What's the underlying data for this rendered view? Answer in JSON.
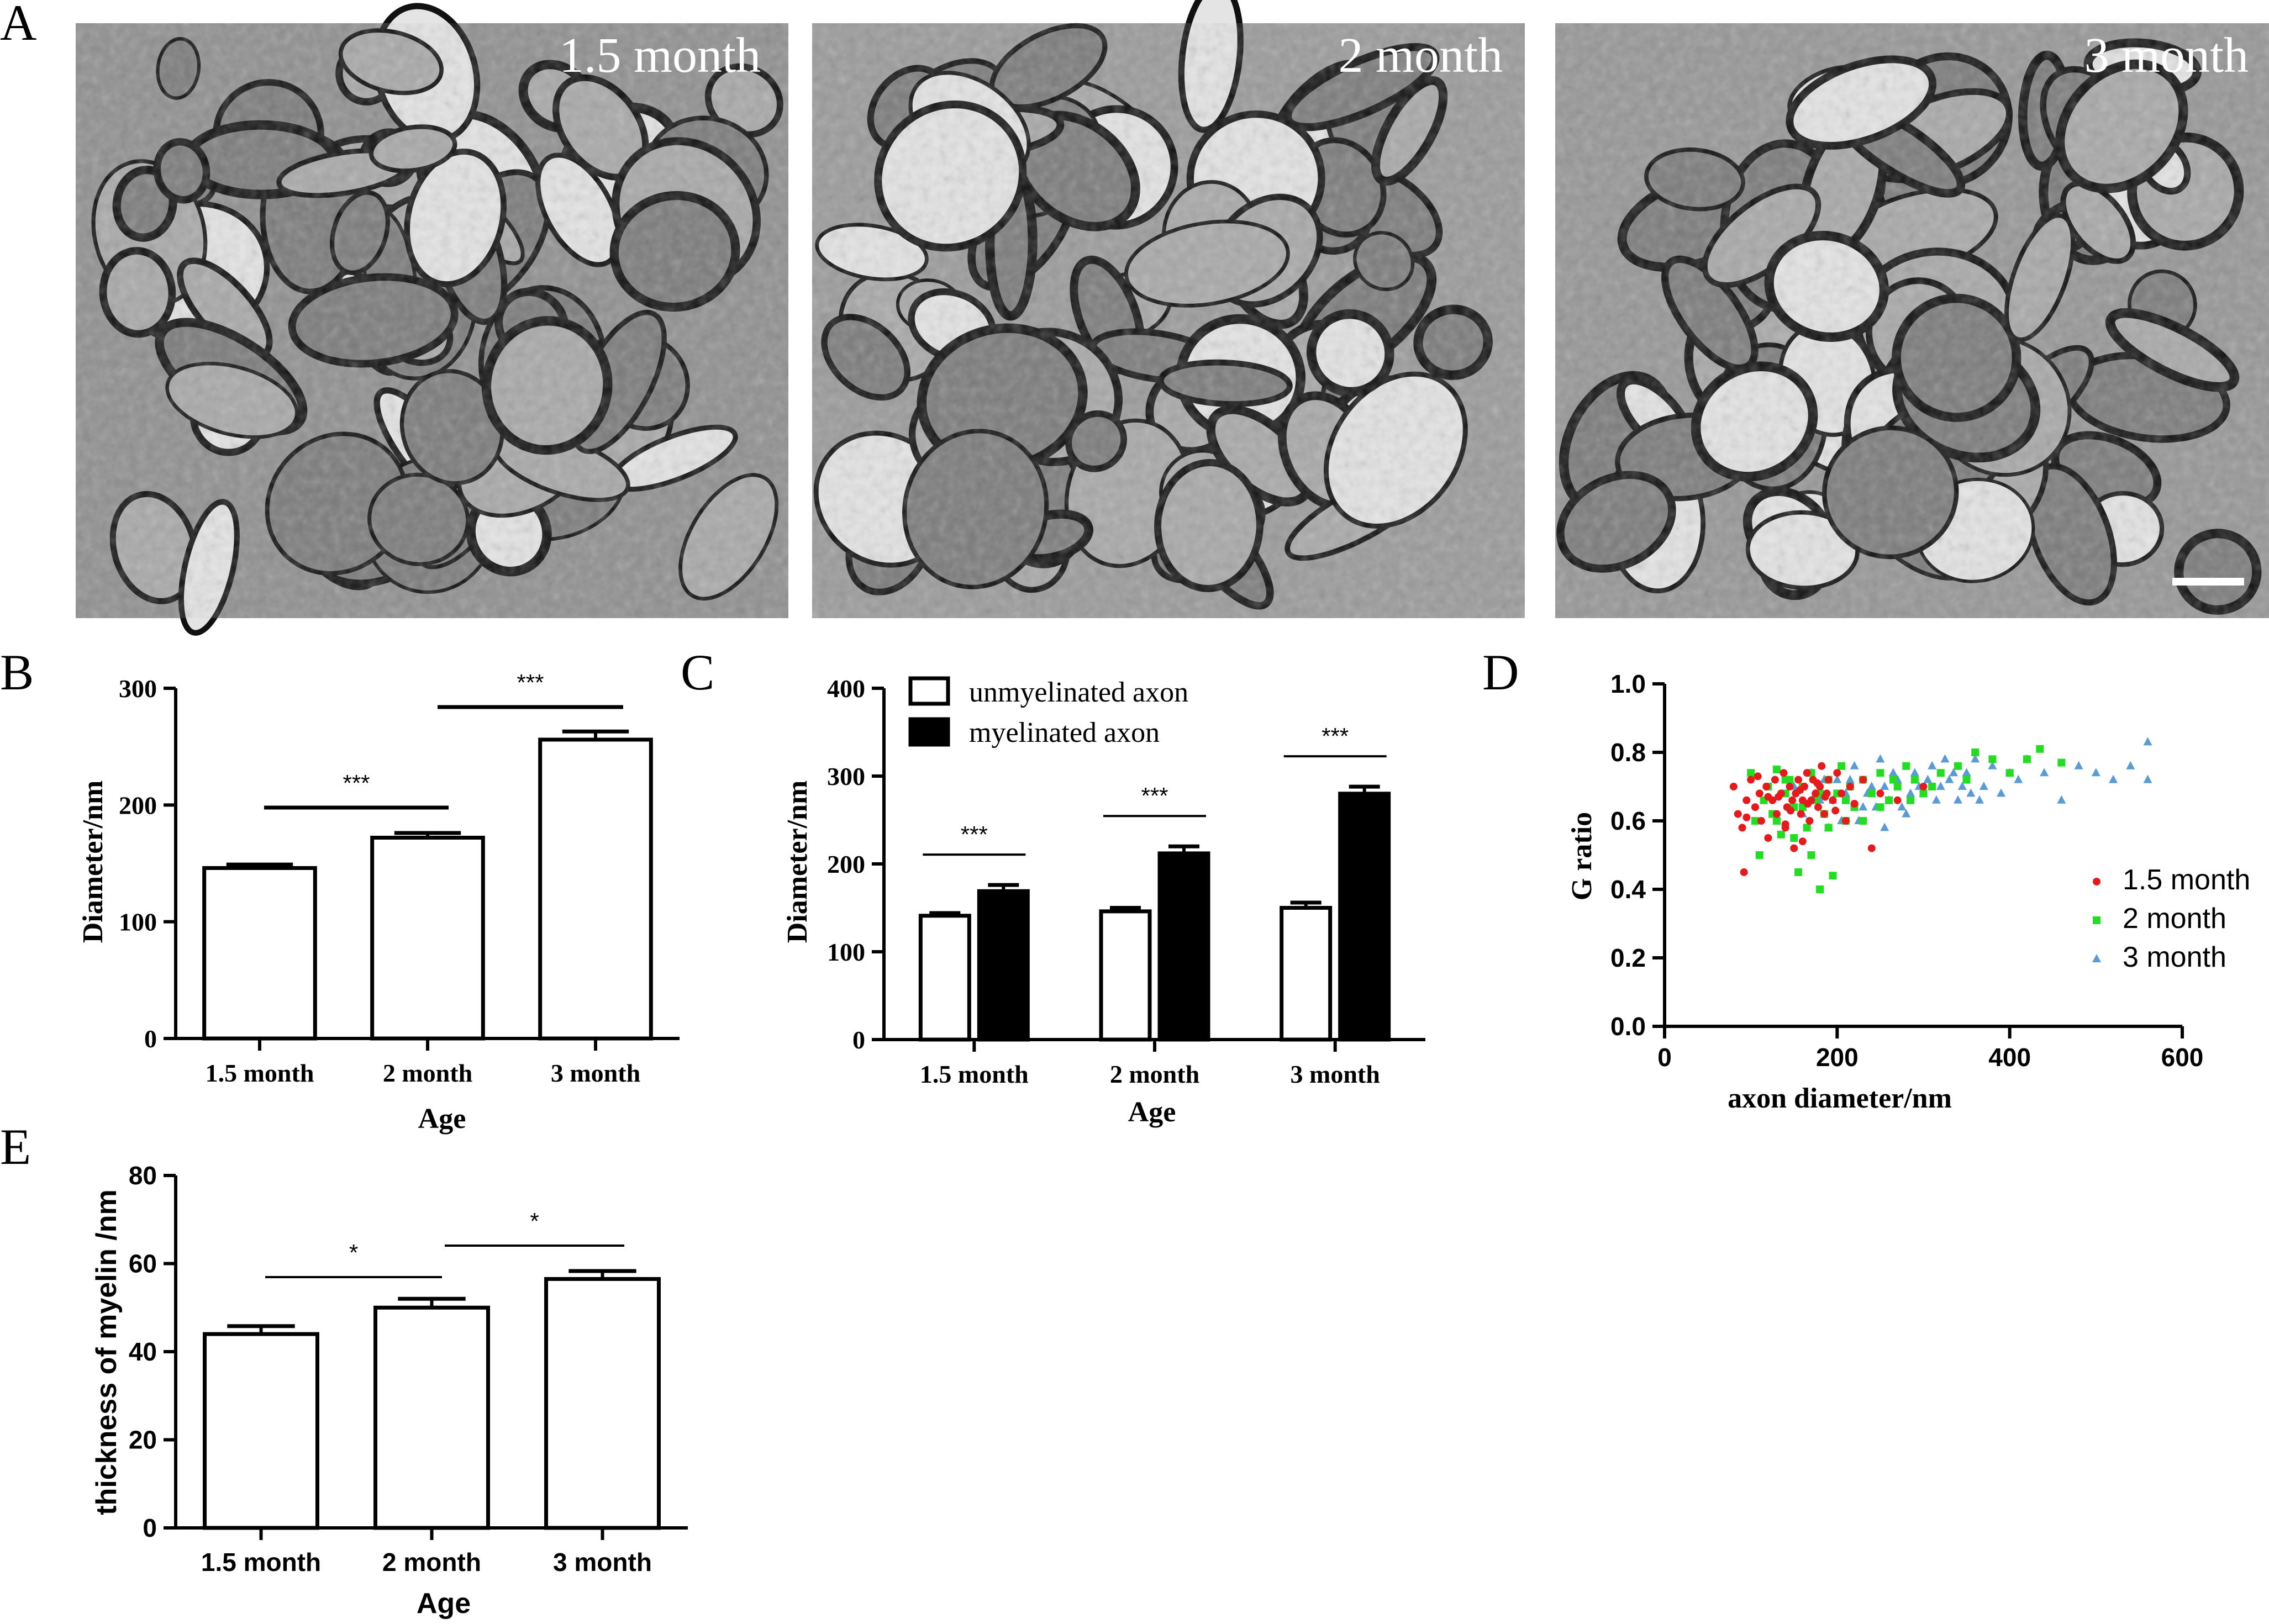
{
  "figure": {
    "panel_labels": [
      "A",
      "B",
      "C",
      "D",
      "E"
    ]
  },
  "panel_a": {
    "images": [
      {
        "label": "1.5 month",
        "tone": "#8f8f8f"
      },
      {
        "label": "2 month",
        "tone": "#9a9a9a"
      },
      {
        "label": "3 month",
        "tone": "#969696"
      }
    ]
  },
  "chart_data": [
    {
      "panel": "B",
      "type": "bar",
      "categories": [
        "1.5 month",
        "2 month",
        "3 month"
      ],
      "values": [
        146,
        172,
        256
      ],
      "errors": [
        3,
        4,
        7
      ],
      "xlabel": "Age",
      "ylabel": "Diameter/nm",
      "ylim": [
        0,
        300
      ],
      "yticks": [
        0,
        100,
        200,
        300
      ],
      "significance": [
        {
          "from": 0,
          "to": 1,
          "label": "***"
        },
        {
          "from": 1,
          "to": 2,
          "label": "***"
        }
      ]
    },
    {
      "panel": "C",
      "type": "bar",
      "categories": [
        "1.5 month",
        "2 month",
        "3 month"
      ],
      "series": [
        {
          "name": "unmyelinated axon",
          "values": [
            141,
            146,
            150
          ],
          "errors": [
            3,
            4,
            6
          ],
          "fill": "#ffffff"
        },
        {
          "name": "myelinated axon",
          "values": [
            169,
            212,
            280
          ],
          "errors": [
            7,
            8,
            8
          ],
          "fill": "#000000"
        }
      ],
      "xlabel": "Age",
      "ylabel": "Diameter/nm",
      "ylim": [
        0,
        400
      ],
      "yticks": [
        0,
        100,
        200,
        300,
        400
      ],
      "significance": [
        {
          "group": 0,
          "label": "***"
        },
        {
          "group": 1,
          "label": "***"
        },
        {
          "group": 2,
          "label": "***"
        }
      ]
    },
    {
      "panel": "D",
      "type": "scatter",
      "xlabel": "axon diameter/nm",
      "ylabel": "G ratio",
      "xlim": [
        0,
        600
      ],
      "ylim": [
        0,
        1.0
      ],
      "xticks": [
        0,
        200,
        400,
        600
      ],
      "yticks": [
        0.0,
        0.2,
        0.4,
        0.6,
        0.8,
        1.0
      ],
      "legend_position": "right",
      "series": [
        {
          "name": "1.5 month",
          "color": "#e41a1c",
          "marker": "circle",
          "points": [
            [
              80,
              0.7
            ],
            [
              85,
              0.62
            ],
            [
              90,
              0.58
            ],
            [
              92,
              0.45
            ],
            [
              95,
              0.66
            ],
            [
              100,
              0.72
            ],
            [
              105,
              0.64
            ],
            [
              110,
              0.68
            ],
            [
              112,
              0.6
            ],
            [
              118,
              0.7
            ],
            [
              120,
              0.55
            ],
            [
              125,
              0.66
            ],
            [
              128,
              0.72
            ],
            [
              130,
              0.62
            ],
            [
              135,
              0.68
            ],
            [
              138,
              0.74
            ],
            [
              140,
              0.58
            ],
            [
              142,
              0.64
            ],
            [
              145,
              0.7
            ],
            [
              148,
              0.66
            ],
            [
              150,
              0.52
            ],
            [
              152,
              0.68
            ],
            [
              155,
              0.72
            ],
            [
              158,
              0.62
            ],
            [
              160,
              0.66
            ],
            [
              162,
              0.7
            ],
            [
              165,
              0.74
            ],
            [
              168,
              0.6
            ],
            [
              170,
              0.66
            ],
            [
              172,
              0.72
            ],
            [
              175,
              0.68
            ],
            [
              178,
              0.64
            ],
            [
              180,
              0.7
            ],
            [
              182,
              0.76
            ],
            [
              185,
              0.62
            ],
            [
              188,
              0.68
            ],
            [
              190,
              0.72
            ],
            [
              195,
              0.66
            ],
            [
              200,
              0.74
            ],
            [
              205,
              0.68
            ],
            [
              210,
              0.6
            ],
            [
              215,
              0.7
            ],
            [
              220,
              0.65
            ],
            [
              230,
              0.72
            ],
            [
              240,
              0.52
            ],
            [
              250,
              0.68
            ],
            [
              270,
              0.66
            ],
            [
              300,
              0.7
            ],
            [
              95,
              0.61
            ],
            [
              108,
              0.73
            ],
            [
              132,
              0.67
            ],
            [
              146,
              0.63
            ],
            [
              157,
              0.69
            ],
            [
              166,
              0.65
            ],
            [
              177,
              0.71
            ],
            [
              186,
              0.67
            ],
            [
              198,
              0.63
            ],
            [
              160,
              0.54
            ],
            [
              140,
              0.59
            ],
            [
              120,
              0.67
            ]
          ]
        },
        {
          "name": "2 month",
          "color": "#22dd22",
          "marker": "square",
          "points": [
            [
              100,
              0.74
            ],
            [
              105,
              0.6
            ],
            [
              110,
              0.5
            ],
            [
              115,
              0.66
            ],
            [
              120,
              0.7
            ],
            [
              125,
              0.62
            ],
            [
              130,
              0.75
            ],
            [
              135,
              0.56
            ],
            [
              140,
              0.68
            ],
            [
              145,
              0.72
            ],
            [
              150,
              0.64
            ],
            [
              155,
              0.45
            ],
            [
              160,
              0.7
            ],
            [
              165,
              0.58
            ],
            [
              170,
              0.74
            ],
            [
              175,
              0.66
            ],
            [
              180,
              0.4
            ],
            [
              185,
              0.62
            ],
            [
              190,
              0.72
            ],
            [
              195,
              0.44
            ],
            [
              200,
              0.68
            ],
            [
              205,
              0.76
            ],
            [
              210,
              0.6
            ],
            [
              215,
              0.7
            ],
            [
              220,
              0.64
            ],
            [
              230,
              0.72
            ],
            [
              240,
              0.68
            ],
            [
              250,
              0.74
            ],
            [
              260,
              0.66
            ],
            [
              270,
              0.7
            ],
            [
              280,
              0.76
            ],
            [
              290,
              0.72
            ],
            [
              300,
              0.68
            ],
            [
              320,
              0.74
            ],
            [
              340,
              0.76
            ],
            [
              360,
              0.8
            ],
            [
              380,
              0.78
            ],
            [
              400,
              0.74
            ],
            [
              420,
              0.78
            ],
            [
              435,
              0.81
            ],
            [
              460,
              0.77
            ],
            [
              170,
              0.5
            ],
            [
              150,
              0.55
            ],
            [
              130,
              0.6
            ],
            [
              190,
              0.58
            ],
            [
              210,
              0.66
            ],
            [
              230,
              0.6
            ],
            [
              250,
              0.64
            ],
            [
              265,
              0.72
            ],
            [
              285,
              0.66
            ],
            [
              310,
              0.7
            ],
            [
              350,
              0.72
            ],
            [
              180,
              0.68
            ],
            [
              160,
              0.64
            ],
            [
              140,
              0.72
            ]
          ]
        },
        {
          "name": "3 month",
          "color": "#5b9bd5",
          "marker": "triangle",
          "points": [
            [
              150,
              0.7
            ],
            [
              160,
              0.62
            ],
            [
              170,
              0.74
            ],
            [
              180,
              0.66
            ],
            [
              190,
              0.58
            ],
            [
              200,
              0.72
            ],
            [
              210,
              0.68
            ],
            [
              220,
              0.76
            ],
            [
              230,
              0.64
            ],
            [
              240,
              0.7
            ],
            [
              250,
              0.78
            ],
            [
              260,
              0.66
            ],
            [
              270,
              0.72
            ],
            [
              280,
              0.62
            ],
            [
              290,
              0.74
            ],
            [
              300,
              0.68
            ],
            [
              310,
              0.76
            ],
            [
              320,
              0.7
            ],
            [
              330,
              0.72
            ],
            [
              340,
              0.66
            ],
            [
              350,
              0.74
            ],
            [
              360,
              0.78
            ],
            [
              370,
              0.7
            ],
            [
              380,
              0.76
            ],
            [
              390,
              0.68
            ],
            [
              400,
              0.74
            ],
            [
              410,
              0.72
            ],
            [
              420,
              0.78
            ],
            [
              440,
              0.74
            ],
            [
              460,
              0.66
            ],
            [
              480,
              0.76
            ],
            [
              500,
              0.74
            ],
            [
              520,
              0.72
            ],
            [
              540,
              0.76
            ],
            [
              560,
              0.83
            ],
            [
              560,
              0.72
            ],
            [
              225,
              0.6
            ],
            [
              245,
              0.64
            ],
            [
              265,
              0.74
            ],
            [
              285,
              0.68
            ],
            [
              305,
              0.72
            ],
            [
              325,
              0.78
            ],
            [
              345,
              0.7
            ],
            [
              365,
              0.66
            ],
            [
              215,
              0.72
            ],
            [
              235,
              0.68
            ],
            [
              255,
              0.7
            ],
            [
              275,
              0.64
            ],
            [
              295,
              0.7
            ],
            [
              315,
              0.66
            ],
            [
              195,
              0.66
            ],
            [
              205,
              0.6
            ],
            [
              185,
              0.72
            ],
            [
              175,
              0.68
            ],
            [
              255,
              0.58
            ],
            [
              335,
              0.74
            ],
            [
              355,
              0.68
            ]
          ]
        }
      ]
    },
    {
      "panel": "E",
      "type": "bar",
      "categories": [
        "1.5 month",
        "2 month",
        "3 month"
      ],
      "values": [
        44,
        50,
        56.5
      ],
      "errors": [
        1.8,
        2.0,
        1.8
      ],
      "xlabel": "Age",
      "ylabel": "thickness of myelin /nm",
      "ylim": [
        0,
        80
      ],
      "yticks": [
        0,
        20,
        40,
        60,
        80
      ],
      "significance": [
        {
          "from": 0,
          "to": 1,
          "label": "*"
        },
        {
          "from": 1,
          "to": 2,
          "label": "*"
        }
      ]
    }
  ]
}
